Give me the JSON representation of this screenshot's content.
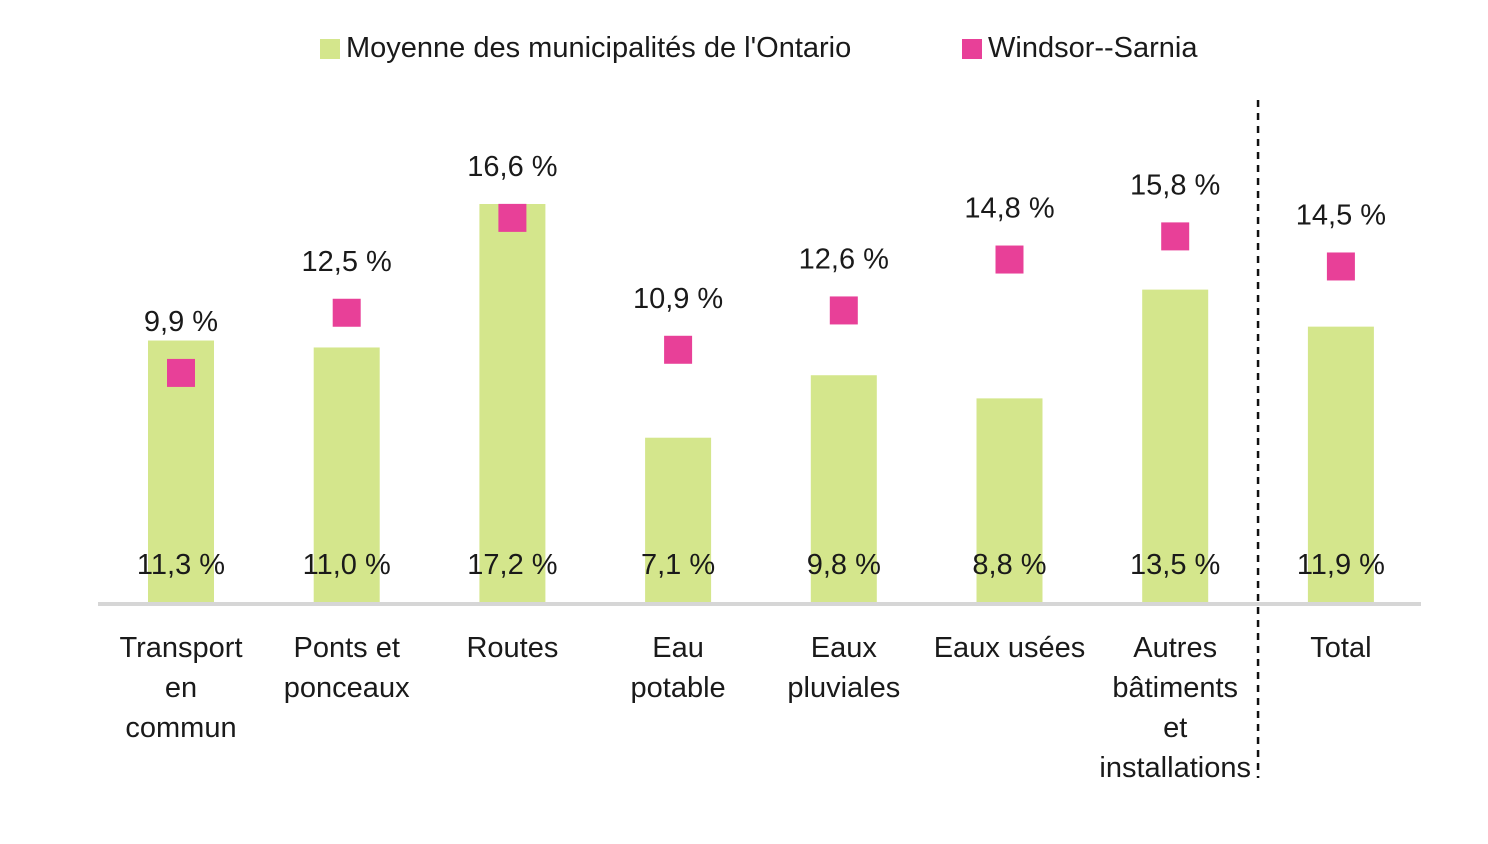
{
  "chart_data": {
    "type": "bar",
    "categories": [
      [
        "Transport",
        "en",
        "commun"
      ],
      [
        "Ponts et",
        "ponceaux"
      ],
      [
        "Routes"
      ],
      [
        "Eau",
        "potable"
      ],
      [
        "Eaux",
        "pluviales"
      ],
      [
        "Eaux usées"
      ],
      [
        "Autres",
        "bâtiments",
        "et",
        "installations"
      ],
      [
        "Total"
      ]
    ],
    "series": [
      {
        "name": "Moyenne des municipalités de l'Ontario",
        "kind": "bar",
        "color": "#d4e68c",
        "values": [
          11.3,
          11.0,
          17.2,
          7.1,
          9.8,
          8.8,
          13.5,
          11.9
        ],
        "labels": [
          "11,3 %",
          "11,0 %",
          "17,2 %",
          "7,1 %",
          "9,8 %",
          "8,8 %",
          "13,5 %",
          "11,9 %"
        ]
      },
      {
        "name": "Windsor--Sarnia",
        "kind": "marker",
        "color": "#e84098",
        "values": [
          9.9,
          12.5,
          16.6,
          10.9,
          12.6,
          14.8,
          15.8,
          14.5
        ],
        "labels": [
          "9,9 %",
          "12,5 %",
          "16,6 %",
          "10,9 %",
          "12,6 %",
          "14,8 %",
          "15,8 %",
          "14,5 %"
        ]
      }
    ],
    "ylim": [
      0,
      17.2
    ],
    "grid": false,
    "legend_position": "top",
    "separator_before_category": "Total"
  },
  "legend": [
    {
      "label": "Moyenne des municipalités de l'Ontario",
      "color": "#d4e68c"
    },
    {
      "label": "Windsor--Sarnia",
      "color": "#e84098"
    }
  ]
}
